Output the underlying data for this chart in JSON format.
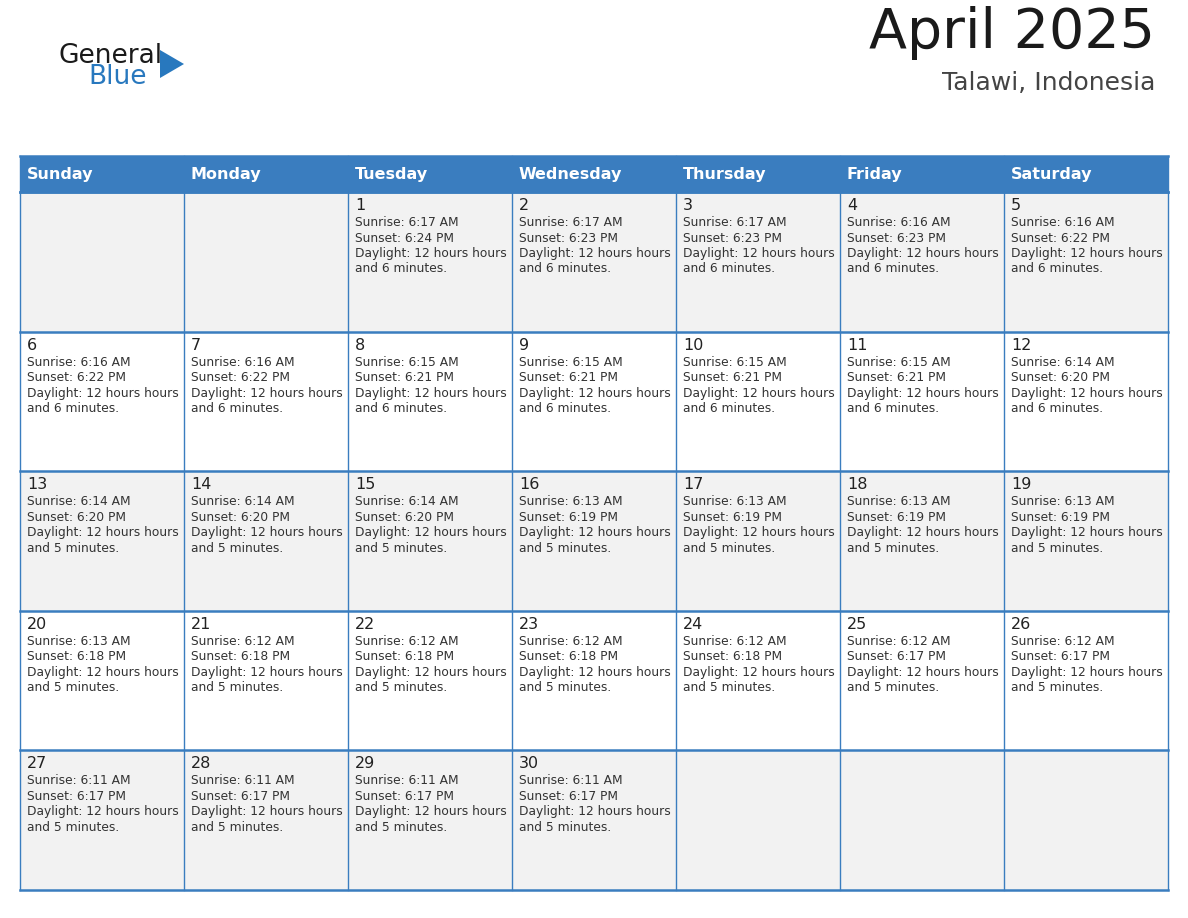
{
  "title": "April 2025",
  "subtitle": "Talawi, Indonesia",
  "header_bg_color": "#3A7DBF",
  "header_text_color": "#FFFFFF",
  "day_names": [
    "Sunday",
    "Monday",
    "Tuesday",
    "Wednesday",
    "Thursday",
    "Friday",
    "Saturday"
  ],
  "row_bg_even": "#F2F2F2",
  "row_bg_odd": "#FFFFFF",
  "border_color": "#3A7DBF",
  "text_color": "#333333",
  "day_num_color": "#222222",
  "title_color": "#1a1a1a",
  "subtitle_color": "#444444",
  "calendar": [
    [
      {
        "day": "",
        "sunrise": "",
        "sunset": "",
        "daylight": ""
      },
      {
        "day": "",
        "sunrise": "",
        "sunset": "",
        "daylight": ""
      },
      {
        "day": "1",
        "sunrise": "6:17 AM",
        "sunset": "6:24 PM",
        "daylight": "12 hours and 6 minutes."
      },
      {
        "day": "2",
        "sunrise": "6:17 AM",
        "sunset": "6:23 PM",
        "daylight": "12 hours and 6 minutes."
      },
      {
        "day": "3",
        "sunrise": "6:17 AM",
        "sunset": "6:23 PM",
        "daylight": "12 hours and 6 minutes."
      },
      {
        "day": "4",
        "sunrise": "6:16 AM",
        "sunset": "6:23 PM",
        "daylight": "12 hours and 6 minutes."
      },
      {
        "day": "5",
        "sunrise": "6:16 AM",
        "sunset": "6:22 PM",
        "daylight": "12 hours and 6 minutes."
      }
    ],
    [
      {
        "day": "6",
        "sunrise": "6:16 AM",
        "sunset": "6:22 PM",
        "daylight": "12 hours and 6 minutes."
      },
      {
        "day": "7",
        "sunrise": "6:16 AM",
        "sunset": "6:22 PM",
        "daylight": "12 hours and 6 minutes."
      },
      {
        "day": "8",
        "sunrise": "6:15 AM",
        "sunset": "6:21 PM",
        "daylight": "12 hours and 6 minutes."
      },
      {
        "day": "9",
        "sunrise": "6:15 AM",
        "sunset": "6:21 PM",
        "daylight": "12 hours and 6 minutes."
      },
      {
        "day": "10",
        "sunrise": "6:15 AM",
        "sunset": "6:21 PM",
        "daylight": "12 hours and 6 minutes."
      },
      {
        "day": "11",
        "sunrise": "6:15 AM",
        "sunset": "6:21 PM",
        "daylight": "12 hours and 6 minutes."
      },
      {
        "day": "12",
        "sunrise": "6:14 AM",
        "sunset": "6:20 PM",
        "daylight": "12 hours and 6 minutes."
      }
    ],
    [
      {
        "day": "13",
        "sunrise": "6:14 AM",
        "sunset": "6:20 PM",
        "daylight": "12 hours and 5 minutes."
      },
      {
        "day": "14",
        "sunrise": "6:14 AM",
        "sunset": "6:20 PM",
        "daylight": "12 hours and 5 minutes."
      },
      {
        "day": "15",
        "sunrise": "6:14 AM",
        "sunset": "6:20 PM",
        "daylight": "12 hours and 5 minutes."
      },
      {
        "day": "16",
        "sunrise": "6:13 AM",
        "sunset": "6:19 PM",
        "daylight": "12 hours and 5 minutes."
      },
      {
        "day": "17",
        "sunrise": "6:13 AM",
        "sunset": "6:19 PM",
        "daylight": "12 hours and 5 minutes."
      },
      {
        "day": "18",
        "sunrise": "6:13 AM",
        "sunset": "6:19 PM",
        "daylight": "12 hours and 5 minutes."
      },
      {
        "day": "19",
        "sunrise": "6:13 AM",
        "sunset": "6:19 PM",
        "daylight": "12 hours and 5 minutes."
      }
    ],
    [
      {
        "day": "20",
        "sunrise": "6:13 AM",
        "sunset": "6:18 PM",
        "daylight": "12 hours and 5 minutes."
      },
      {
        "day": "21",
        "sunrise": "6:12 AM",
        "sunset": "6:18 PM",
        "daylight": "12 hours and 5 minutes."
      },
      {
        "day": "22",
        "sunrise": "6:12 AM",
        "sunset": "6:18 PM",
        "daylight": "12 hours and 5 minutes."
      },
      {
        "day": "23",
        "sunrise": "6:12 AM",
        "sunset": "6:18 PM",
        "daylight": "12 hours and 5 minutes."
      },
      {
        "day": "24",
        "sunrise": "6:12 AM",
        "sunset": "6:18 PM",
        "daylight": "12 hours and 5 minutes."
      },
      {
        "day": "25",
        "sunrise": "6:12 AM",
        "sunset": "6:17 PM",
        "daylight": "12 hours and 5 minutes."
      },
      {
        "day": "26",
        "sunrise": "6:12 AM",
        "sunset": "6:17 PM",
        "daylight": "12 hours and 5 minutes."
      }
    ],
    [
      {
        "day": "27",
        "sunrise": "6:11 AM",
        "sunset": "6:17 PM",
        "daylight": "12 hours and 5 minutes."
      },
      {
        "day": "28",
        "sunrise": "6:11 AM",
        "sunset": "6:17 PM",
        "daylight": "12 hours and 5 minutes."
      },
      {
        "day": "29",
        "sunrise": "6:11 AM",
        "sunset": "6:17 PM",
        "daylight": "12 hours and 5 minutes."
      },
      {
        "day": "30",
        "sunrise": "6:11 AM",
        "sunset": "6:17 PM",
        "daylight": "12 hours and 5 minutes."
      },
      {
        "day": "",
        "sunrise": "",
        "sunset": "",
        "daylight": ""
      },
      {
        "day": "",
        "sunrise": "",
        "sunset": "",
        "daylight": ""
      },
      {
        "day": "",
        "sunrise": "",
        "sunset": "",
        "daylight": ""
      }
    ]
  ],
  "logo_general_color": "#1a1a1a",
  "logo_blue_color": "#2878BE",
  "logo_triangle_color": "#2878BE"
}
